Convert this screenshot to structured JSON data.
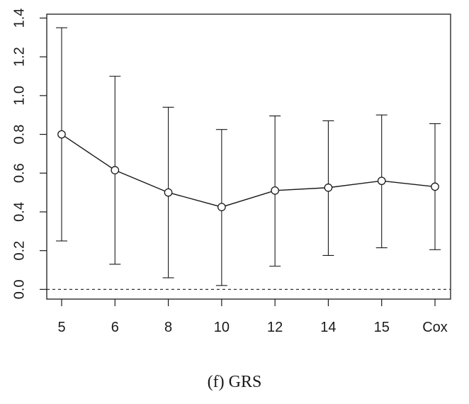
{
  "caption": "(f)  GRS",
  "chart_data": {
    "type": "line",
    "categories": [
      "5",
      "6",
      "8",
      "10",
      "12",
      "14",
      "15",
      "Cox"
    ],
    "series": [
      {
        "values": [
          0.8,
          0.615,
          0.5,
          0.425,
          0.51,
          0.525,
          0.56,
          0.53
        ],
        "lower": [
          0.25,
          0.13,
          0.06,
          0.02,
          0.12,
          0.175,
          0.215,
          0.205
        ],
        "upper": [
          1.35,
          1.1,
          0.94,
          0.825,
          0.895,
          0.87,
          0.9,
          0.855
        ]
      }
    ],
    "ylim": [
      -0.05,
      1.42
    ],
    "yticks": [
      0.0,
      0.2,
      0.4,
      0.6,
      0.8,
      1.0,
      1.2,
      1.4
    ],
    "ytick_labels": [
      "0.0",
      "0.2",
      "0.4",
      "0.6",
      "0.8",
      "1.0",
      "1.2",
      "1.4"
    ],
    "reference_line": 0.0,
    "error_bars": true,
    "markers": "open-circle",
    "grid": false,
    "title": "",
    "xlabel": "",
    "ylabel": ""
  }
}
